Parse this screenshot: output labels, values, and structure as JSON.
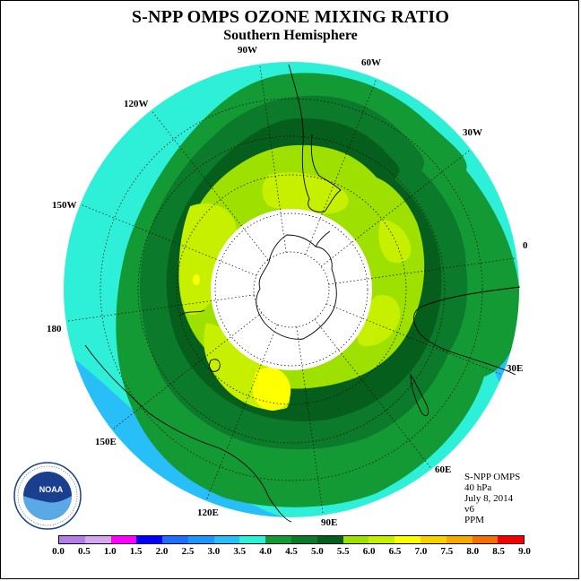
{
  "header": {
    "title": "S-NPP OMPS OZONE MIXING RATIO",
    "subtitle": "Southern Hemisphere"
  },
  "longitude_labels": [
    "90W",
    "60W",
    "30W",
    "0",
    "30E",
    "60E",
    "90E",
    "120E",
    "150E",
    "180",
    "150W",
    "120W"
  ],
  "info_block": {
    "instrument": "S-NPP OMPS",
    "level": "40 hPa",
    "date": "July 8, 2014",
    "version": "v6",
    "units": "PPM"
  },
  "logo": {
    "text": "NOAA",
    "icon": "noaa-logo"
  },
  "colorbar": {
    "ticks": [
      "0.0",
      "0.5",
      "1.0",
      "1.5",
      "2.0",
      "2.5",
      "3.0",
      "3.5",
      "4.0",
      "4.5",
      "5.0",
      "5.5",
      "6.0",
      "6.5",
      "7.0",
      "7.5",
      "8.0",
      "8.5",
      "9.0"
    ],
    "colors": [
      "#b47ee6",
      "#d6a6ee",
      "#ff00ff",
      "#0000ff",
      "#1e6eff",
      "#1e96ff",
      "#28bef8",
      "#2ef0d8",
      "#139a35",
      "#0b7a2a",
      "#065e1c",
      "#9ee000",
      "#c6f000",
      "#ffff00",
      "#f5d200",
      "#f5a800",
      "#f56e00",
      "#f50000",
      "#8a5a3c"
    ]
  },
  "map_data": {
    "projection": "south-polar-stereographic",
    "no_data_region": "polar night",
    "contour_levels_ppm": [
      "3.5",
      "4.0",
      "4.5",
      "5.0",
      "5.5",
      "6.0",
      "6.5"
    ]
  }
}
